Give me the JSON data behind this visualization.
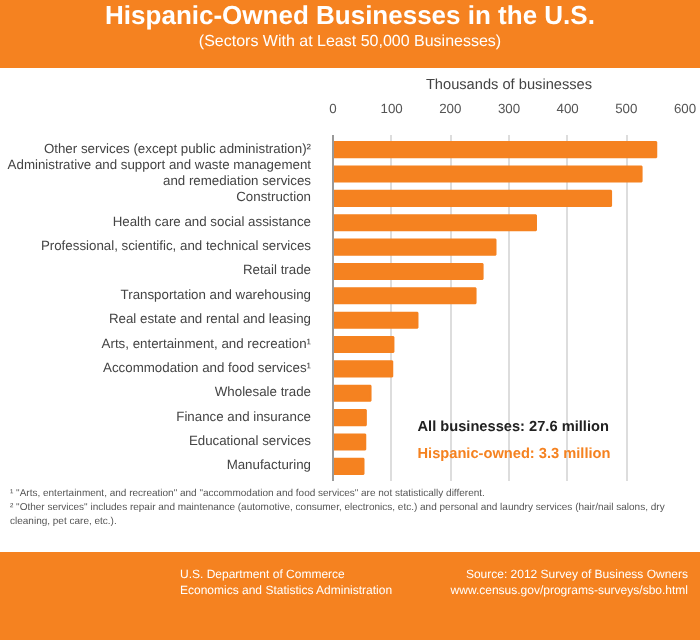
{
  "chart_data": {
    "type": "bar",
    "orientation": "horizontal",
    "title": "Hispanic-Owned Businesses in the U.S.",
    "subtitle": "(Sectors With at Least 50,000 Businesses)",
    "xlabel": "Thousands of businesses",
    "categories": [
      "Other services (except public administration)²",
      "Administrative and support and waste management and remediation services",
      "Construction",
      "Health care and social assistance",
      "Professional, scientific, and technical services",
      "Retail trade",
      "Transportation and warehousing",
      "Real estate and rental and leasing",
      "Arts, entertainment, and recreation¹",
      "Accommodation and food services¹",
      "Wholesale trade",
      "Finance and insurance",
      "Educational services",
      "Manufacturing"
    ],
    "values": [
      551,
      526,
      474,
      346,
      277,
      255,
      243,
      144,
      103,
      101,
      64,
      56,
      55,
      52
    ],
    "color": "#f58220",
    "xlim": [
      0,
      600
    ],
    "xticks": [
      0,
      100,
      200,
      300,
      400,
      500,
      600
    ],
    "grid": "x",
    "annotations": [
      "All businesses: 27.6 million",
      "Hispanic-owned: 3.3 million",
      "¹ \"Arts, entertainment, and recreation\" and \"accommodation and food services\" are not statistically different.",
      "² \"Other services\" includes repair and maintenance (automotive, consumer, electronics, etc.) and personal and laundry services (hair/nail salons, dry cleaning, pet care, etc.).",
      "U.S. Department of Commerce",
      "Economics and Statistics Administration",
      "Source: 2012 Survey of Business Owners",
      "www.census.gov/programs-surveys/sbo.html"
    ]
  }
}
